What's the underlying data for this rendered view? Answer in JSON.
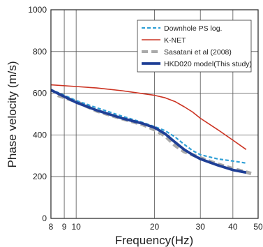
{
  "chart_data": {
    "type": "line",
    "title": "",
    "xlabel": "Frequency(Hz)",
    "ylabel": "Phase velocity (m/s)",
    "x_scale": "log",
    "xlim": [
      8,
      50
    ],
    "ylim": [
      0,
      1000
    ],
    "x_ticks": [
      8,
      9,
      10,
      20,
      30,
      40,
      50
    ],
    "x_tick_labels": [
      "8",
      "9",
      "10",
      "20",
      "30",
      "40",
      "50"
    ],
    "y_ticks": [
      0,
      200,
      400,
      600,
      800,
      1000
    ],
    "y_tick_labels": [
      "0",
      "200",
      "400",
      "600",
      "800",
      "1000"
    ],
    "grid": true,
    "legend_position": "top-right",
    "series": [
      {
        "name": "Downhole PS log.",
        "color": "#2f9fd6",
        "style": "dashed",
        "x": [
          8,
          10,
          12,
          15,
          18,
          20,
          22,
          24,
          26,
          28,
          30,
          35,
          40,
          45
        ],
        "y": [
          618,
          565,
          530,
          490,
          460,
          440,
          420,
          390,
          355,
          325,
          305,
          285,
          275,
          265
        ]
      },
      {
        "name": "K-NET",
        "color": "#cc3322",
        "style": "solid",
        "x": [
          8,
          10,
          12,
          15,
          18,
          20,
          22,
          24,
          26,
          28,
          30,
          35,
          40,
          45
        ],
        "y": [
          640,
          632,
          625,
          612,
          598,
          590,
          578,
          560,
          535,
          510,
          480,
          425,
          375,
          330
        ]
      },
      {
        "name": "Sasatani et al (2008)",
        "color": "#aaaaaa",
        "style": "dashed-thick",
        "x": [
          8.5,
          10,
          12,
          15,
          18,
          20,
          22,
          24,
          26,
          28,
          30,
          35,
          40,
          45,
          47
        ],
        "y": [
          590,
          560,
          515,
          478,
          450,
          425,
          395,
          350,
          320,
          305,
          290,
          260,
          238,
          222,
          215
        ]
      },
      {
        "name": "HKD020 model(This study)",
        "color": "#1f3f96",
        "style": "solid-thick",
        "x": [
          8,
          10,
          12,
          15,
          18,
          20,
          22,
          24,
          26,
          28,
          30,
          35,
          40,
          45
        ],
        "y": [
          615,
          556,
          518,
          480,
          455,
          435,
          405,
          365,
          330,
          305,
          285,
          255,
          232,
          220
        ]
      }
    ]
  }
}
